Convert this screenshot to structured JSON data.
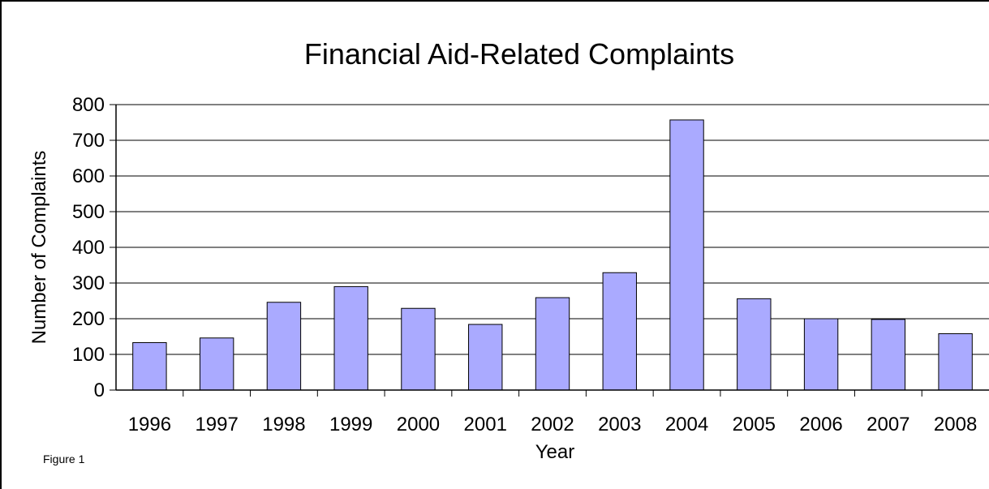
{
  "chart_data": {
    "type": "bar",
    "title": "Financial Aid-Related Complaints",
    "xlabel": "Year",
    "ylabel": "Number of Complaints",
    "categories": [
      "1996",
      "1997",
      "1998",
      "1999",
      "2000",
      "2001",
      "2002",
      "2003",
      "2004",
      "2005",
      "2006",
      "2007",
      "2008"
    ],
    "values": [
      133,
      146,
      246,
      290,
      229,
      184,
      259,
      329,
      757,
      256,
      200,
      198,
      158
    ],
    "ylim": [
      0,
      800
    ],
    "yticks": [
      "0",
      "100",
      "200",
      "300",
      "400",
      "500",
      "600",
      "700",
      "800"
    ],
    "grid": true,
    "bar_color": "#aaaaff",
    "legend": false
  },
  "caption": "Figure 1"
}
